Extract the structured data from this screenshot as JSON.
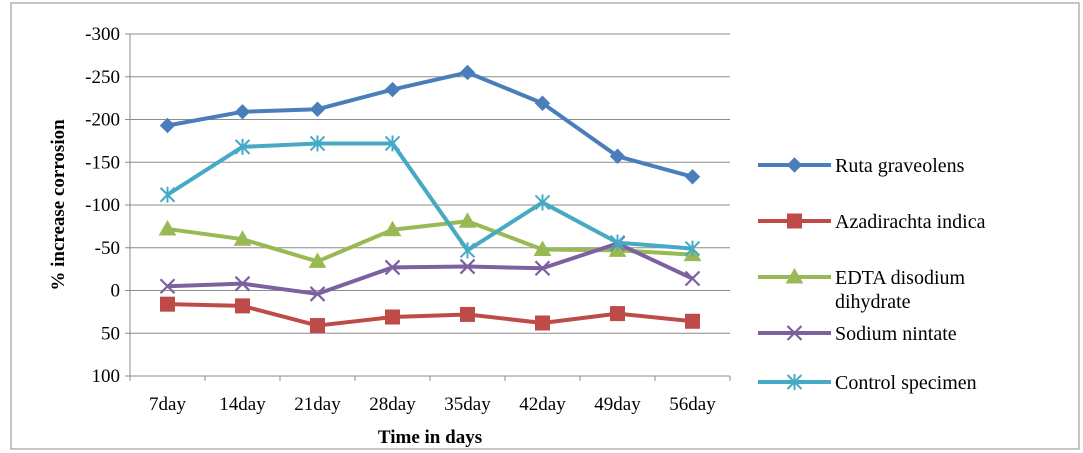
{
  "chart_data": {
    "type": "line",
    "title": "",
    "xlabel": "Time in days",
    "ylabel": "% increase corrosion",
    "categories": [
      "7day",
      "14day",
      "21day",
      "28day",
      "35day",
      "42day",
      "49day",
      "56day"
    ],
    "ylim": [
      100,
      -300
    ],
    "yticks": [
      -300,
      -250,
      -200,
      -150,
      -100,
      -50,
      0,
      50,
      100
    ],
    "y_inverted": true,
    "grid": true,
    "legend_position": "right",
    "series": [
      {
        "name": "Ruta graveolens",
        "color": "#4a7ebb",
        "marker": "diamond",
        "values": [
          -193,
          -209,
          -212,
          -235,
          -255,
          -219,
          -157,
          -133
        ]
      },
      {
        "name": "Azadirachta indica",
        "color": "#be4b48",
        "marker": "square",
        "values": [
          16,
          18,
          41,
          31,
          28,
          38,
          27,
          36
        ]
      },
      {
        "name": "EDTA disodium dihydrate",
        "color": "#98b954",
        "marker": "triangle",
        "values": [
          -72,
          -60,
          -34,
          -71,
          -81,
          -48,
          -47,
          -42
        ]
      },
      {
        "name": "Sodium nintate",
        "color": "#7d60a0",
        "marker": "x",
        "values": [
          -5,
          -8,
          4,
          -27,
          -28,
          -26,
          -55,
          -14
        ]
      },
      {
        "name": "Control specimen",
        "color": "#46aac5",
        "marker": "star",
        "values": [
          -112,
          -168,
          -172,
          -172,
          -47,
          -103,
          -56,
          -49
        ]
      }
    ]
  }
}
